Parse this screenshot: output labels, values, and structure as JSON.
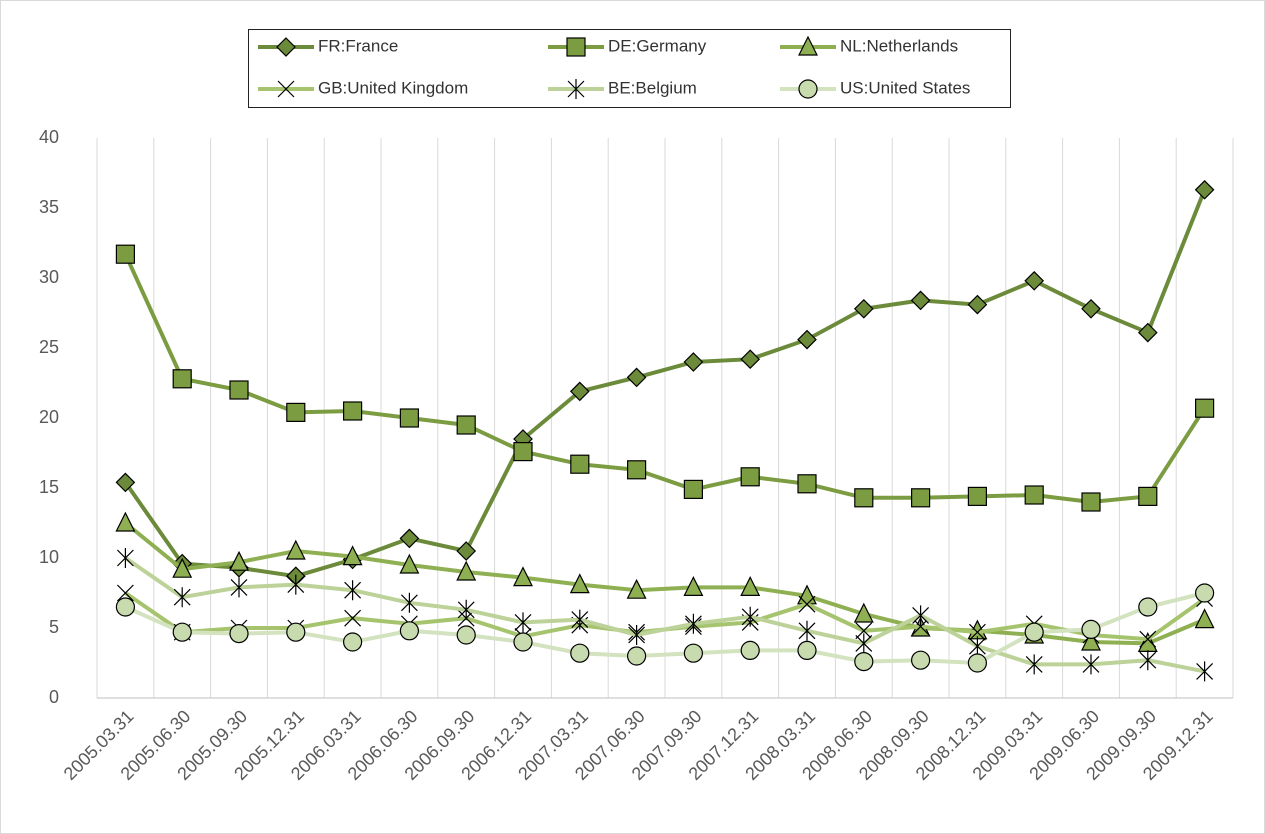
{
  "chart_data": {
    "type": "line",
    "categories": [
      "2005.03.31",
      "2005.06.30",
      "2005.09.30",
      "2005.12.31",
      "2006.03.31",
      "2006.06.30",
      "2006.09.30",
      "2006.12.31",
      "2007.03.31",
      "2007.06.30",
      "2007.09.30",
      "2007.12.31",
      "2008.03.31",
      "2008.06.30",
      "2008.09.30",
      "2008.12.31",
      "2009.03.31",
      "2009.06.30",
      "2009.09.30",
      "2009.12.31"
    ],
    "series": [
      {
        "name": "FR:France",
        "color": "#6b8a3a",
        "marker": "diamond",
        "values": [
          15.4,
          9.6,
          9.3,
          8.7,
          9.9,
          11.4,
          10.5,
          18.5,
          21.9,
          22.9,
          24.0,
          24.2,
          25.6,
          27.8,
          28.4,
          28.1,
          29.8,
          27.8,
          26.1,
          36.3
        ]
      },
      {
        "name": "DE:Germany",
        "color": "#7c9c42",
        "marker": "square",
        "values": [
          31.7,
          22.8,
          22.0,
          20.4,
          20.5,
          20.0,
          19.5,
          17.6,
          16.7,
          16.3,
          14.9,
          15.8,
          15.3,
          14.3,
          14.3,
          14.4,
          14.5,
          14.0,
          14.4,
          20.7
        ]
      },
      {
        "name": "NL:Netherlands",
        "color": "#8fb052",
        "marker": "triangle",
        "values": [
          12.5,
          9.2,
          9.7,
          10.5,
          10.1,
          9.5,
          9.0,
          8.6,
          8.1,
          7.7,
          7.9,
          7.9,
          7.3,
          6.0,
          5.0,
          4.8,
          4.5,
          4.0,
          3.9,
          5.6
        ]
      },
      {
        "name": "GB:United Kingdom",
        "color": "#a6c46e",
        "marker": "x",
        "values": [
          7.5,
          4.7,
          5.0,
          5.0,
          5.7,
          5.3,
          5.7,
          4.4,
          5.2,
          4.7,
          5.1,
          5.4,
          6.7,
          4.8,
          5.1,
          4.7,
          5.3,
          4.5,
          4.2,
          7.1
        ]
      },
      {
        "name": "BE:Belgium",
        "color": "#bcd298",
        "marker": "star",
        "values": [
          10.0,
          7.2,
          7.9,
          8.1,
          7.7,
          6.8,
          6.3,
          5.4,
          5.6,
          4.5,
          5.3,
          5.8,
          4.8,
          3.9,
          5.9,
          3.7,
          2.4,
          2.4,
          2.7,
          1.9
        ]
      },
      {
        "name": "US:United States",
        "color": "#d3e2bf",
        "marker": "circle",
        "values": [
          6.5,
          4.7,
          4.6,
          4.7,
          4.0,
          4.8,
          4.5,
          4.0,
          3.2,
          3.0,
          3.2,
          3.4,
          3.4,
          2.6,
          2.7,
          2.5,
          4.7,
          4.9,
          6.5,
          7.5
        ]
      }
    ],
    "ylim": [
      0,
      40
    ],
    "yticks": [
      0,
      5,
      10,
      15,
      20,
      25,
      30,
      35,
      40
    ],
    "grid": "x",
    "legend": "top"
  }
}
